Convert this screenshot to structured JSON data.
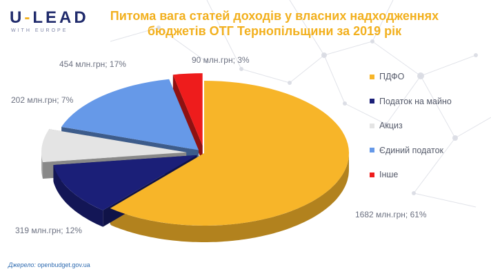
{
  "logo": {
    "main_left": "U",
    "dash": "-",
    "main_right": "LEAD",
    "sub": "WITH EUROPE"
  },
  "title": {
    "line1": "Питома вага статей доходів у власних надходженнях",
    "line2": "бюджетів ОТГ Тернопільщини за 2019 рік"
  },
  "chart_data": {
    "type": "pie",
    "style": "3d exploded",
    "title": "Питома вага статей доходів у власних надходженнях бюджетів ОТГ Тернопільщини за 2019 рік",
    "categories": [
      "ПДФО",
      "Податок на майно",
      "Акциз",
      "Єдиний податок",
      "Інше"
    ],
    "values": [
      1682,
      319,
      202,
      454,
      90
    ],
    "percents": [
      61,
      12,
      7,
      17,
      3
    ],
    "unit": "млн.грн",
    "data_labels": [
      "1682 млн.грн; 61%",
      "319 млн.грн; 12%",
      "202 млн.грн; 7%",
      "454 млн.грн; 17%",
      "90 млн.грн; 3%"
    ],
    "colors": [
      "#f7b529",
      "#1b1f78",
      "#e4e4e4",
      "#6699e8",
      "#ee1c1c"
    ],
    "legend_position": "right"
  },
  "source": {
    "label": "Джерело:",
    "link": "openbudget.gov.ua"
  }
}
